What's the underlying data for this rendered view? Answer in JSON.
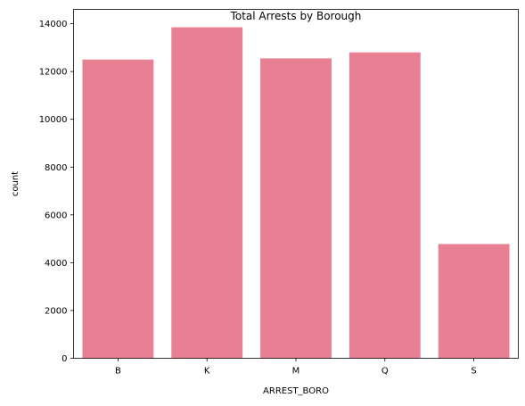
{
  "chart_data": {
    "type": "bar",
    "title": "Total Arrests by Borough",
    "xlabel": "ARREST_BORO",
    "ylabel": "count",
    "categories": [
      "B",
      "K",
      "M",
      "Q",
      "S"
    ],
    "values": [
      12500,
      13850,
      12550,
      12800,
      4780
    ],
    "ylim": [
      0,
      14600
    ],
    "yticks": [
      0,
      2000,
      4000,
      6000,
      8000,
      10000,
      12000,
      14000
    ],
    "bar_color": "#e88093",
    "grid": false,
    "legend": "none"
  }
}
